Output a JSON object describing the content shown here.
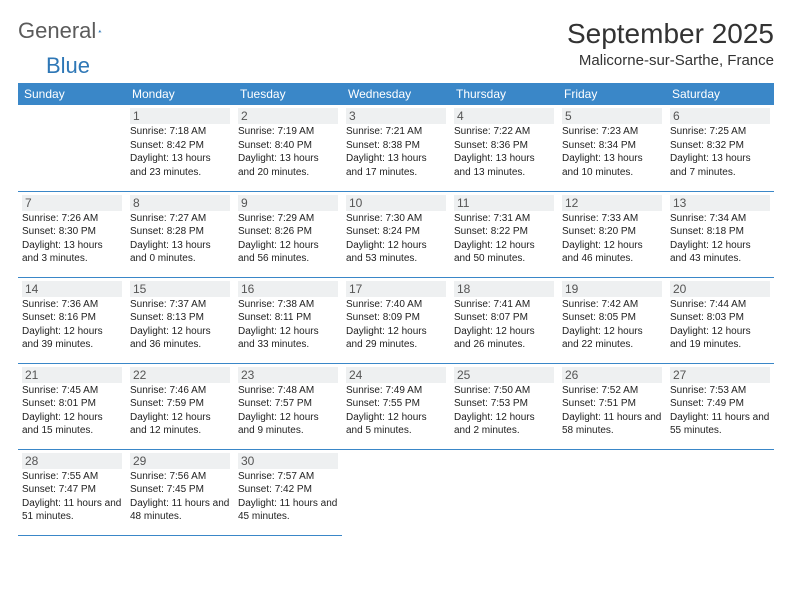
{
  "logo": {
    "word1": "General",
    "word2": "Blue"
  },
  "title": "September 2025",
  "location": "Malicorne-sur-Sarthe, France",
  "header_bg": "#3a87c8",
  "header_fg": "#ffffff",
  "rule_color": "#3a87c8",
  "daynum_bg": "#eef0f1",
  "weekdays": [
    "Sunday",
    "Monday",
    "Tuesday",
    "Wednesday",
    "Thursday",
    "Friday",
    "Saturday"
  ],
  "first_weekday_index": 1,
  "days": [
    {
      "n": 1,
      "sunrise": "7:18 AM",
      "sunset": "8:42 PM",
      "daylight": "13 hours and 23 minutes."
    },
    {
      "n": 2,
      "sunrise": "7:19 AM",
      "sunset": "8:40 PM",
      "daylight": "13 hours and 20 minutes."
    },
    {
      "n": 3,
      "sunrise": "7:21 AM",
      "sunset": "8:38 PM",
      "daylight": "13 hours and 17 minutes."
    },
    {
      "n": 4,
      "sunrise": "7:22 AM",
      "sunset": "8:36 PM",
      "daylight": "13 hours and 13 minutes."
    },
    {
      "n": 5,
      "sunrise": "7:23 AM",
      "sunset": "8:34 PM",
      "daylight": "13 hours and 10 minutes."
    },
    {
      "n": 6,
      "sunrise": "7:25 AM",
      "sunset": "8:32 PM",
      "daylight": "13 hours and 7 minutes."
    },
    {
      "n": 7,
      "sunrise": "7:26 AM",
      "sunset": "8:30 PM",
      "daylight": "13 hours and 3 minutes."
    },
    {
      "n": 8,
      "sunrise": "7:27 AM",
      "sunset": "8:28 PM",
      "daylight": "13 hours and 0 minutes."
    },
    {
      "n": 9,
      "sunrise": "7:29 AM",
      "sunset": "8:26 PM",
      "daylight": "12 hours and 56 minutes."
    },
    {
      "n": 10,
      "sunrise": "7:30 AM",
      "sunset": "8:24 PM",
      "daylight": "12 hours and 53 minutes."
    },
    {
      "n": 11,
      "sunrise": "7:31 AM",
      "sunset": "8:22 PM",
      "daylight": "12 hours and 50 minutes."
    },
    {
      "n": 12,
      "sunrise": "7:33 AM",
      "sunset": "8:20 PM",
      "daylight": "12 hours and 46 minutes."
    },
    {
      "n": 13,
      "sunrise": "7:34 AM",
      "sunset": "8:18 PM",
      "daylight": "12 hours and 43 minutes."
    },
    {
      "n": 14,
      "sunrise": "7:36 AM",
      "sunset": "8:16 PM",
      "daylight": "12 hours and 39 minutes."
    },
    {
      "n": 15,
      "sunrise": "7:37 AM",
      "sunset": "8:13 PM",
      "daylight": "12 hours and 36 minutes."
    },
    {
      "n": 16,
      "sunrise": "7:38 AM",
      "sunset": "8:11 PM",
      "daylight": "12 hours and 33 minutes."
    },
    {
      "n": 17,
      "sunrise": "7:40 AM",
      "sunset": "8:09 PM",
      "daylight": "12 hours and 29 minutes."
    },
    {
      "n": 18,
      "sunrise": "7:41 AM",
      "sunset": "8:07 PM",
      "daylight": "12 hours and 26 minutes."
    },
    {
      "n": 19,
      "sunrise": "7:42 AM",
      "sunset": "8:05 PM",
      "daylight": "12 hours and 22 minutes."
    },
    {
      "n": 20,
      "sunrise": "7:44 AM",
      "sunset": "8:03 PM",
      "daylight": "12 hours and 19 minutes."
    },
    {
      "n": 21,
      "sunrise": "7:45 AM",
      "sunset": "8:01 PM",
      "daylight": "12 hours and 15 minutes."
    },
    {
      "n": 22,
      "sunrise": "7:46 AM",
      "sunset": "7:59 PM",
      "daylight": "12 hours and 12 minutes."
    },
    {
      "n": 23,
      "sunrise": "7:48 AM",
      "sunset": "7:57 PM",
      "daylight": "12 hours and 9 minutes."
    },
    {
      "n": 24,
      "sunrise": "7:49 AM",
      "sunset": "7:55 PM",
      "daylight": "12 hours and 5 minutes."
    },
    {
      "n": 25,
      "sunrise": "7:50 AM",
      "sunset": "7:53 PM",
      "daylight": "12 hours and 2 minutes."
    },
    {
      "n": 26,
      "sunrise": "7:52 AM",
      "sunset": "7:51 PM",
      "daylight": "11 hours and 58 minutes."
    },
    {
      "n": 27,
      "sunrise": "7:53 AM",
      "sunset": "7:49 PM",
      "daylight": "11 hours and 55 minutes."
    },
    {
      "n": 28,
      "sunrise": "7:55 AM",
      "sunset": "7:47 PM",
      "daylight": "11 hours and 51 minutes."
    },
    {
      "n": 29,
      "sunrise": "7:56 AM",
      "sunset": "7:45 PM",
      "daylight": "11 hours and 48 minutes."
    },
    {
      "n": 30,
      "sunrise": "7:57 AM",
      "sunset": "7:42 PM",
      "daylight": "11 hours and 45 minutes."
    }
  ],
  "labels": {
    "sunrise": "Sunrise:",
    "sunset": "Sunset:",
    "daylight": "Daylight:"
  }
}
